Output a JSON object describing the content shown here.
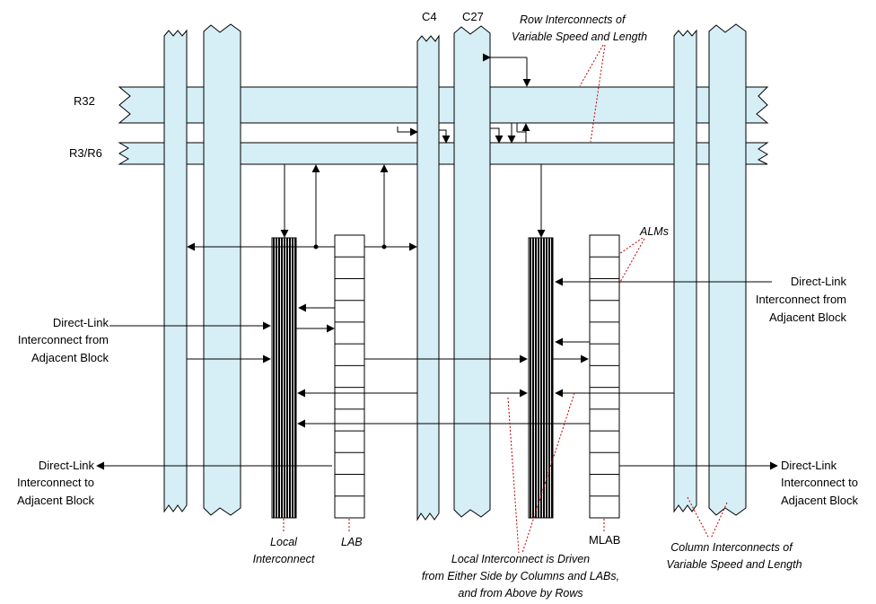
{
  "colors": {
    "bus_fill": "#d6eef6",
    "outline": "#000000",
    "annotation_leader": "#c00000",
    "local_interconnect": "#000000"
  },
  "rows": {
    "r32": "R32",
    "r3r6": "R3/R6"
  },
  "columns": {
    "c4": "C4",
    "c27": "C27"
  },
  "blocks": {
    "lab": "LAB",
    "mlab": "MLAB",
    "alms": "ALMs",
    "alm_cells_per_block": 13
  },
  "left_labels": {
    "direct_link_from": [
      "Direct-Link",
      "Interconnect from",
      "Adjacent Block"
    ],
    "direct_link_to": [
      "Direct-Link",
      "Interconnect to",
      "Adjacent Block"
    ]
  },
  "right_labels": {
    "direct_link_from": [
      "Direct-Link",
      "Interconnect from",
      "Adjacent Block"
    ],
    "direct_link_to": [
      "Direct-Link",
      "Interconnect to",
      "Adjacent Block"
    ]
  },
  "annotations": {
    "row_interconnects": [
      "Row Interconnects of",
      "Variable Speed and Length"
    ],
    "column_interconnects": [
      "Column Interconnects of",
      "Variable Speed and Length"
    ],
    "local_interconnect": [
      "Local",
      "Interconnect"
    ],
    "local_driven": [
      "Local Interconnect is Driven",
      "from Either Side by Columns and LABs,",
      "and from Above by Rows"
    ]
  }
}
